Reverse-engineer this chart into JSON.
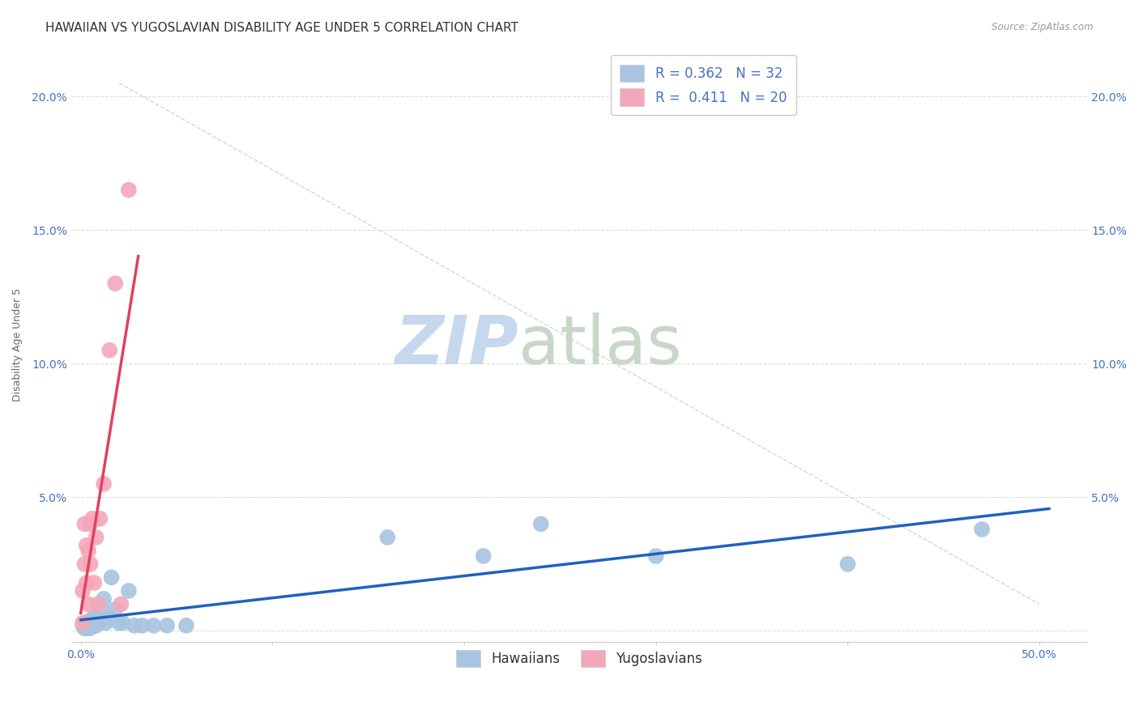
{
  "title": "HAWAIIAN VS YUGOSLAVIAN DISABILITY AGE UNDER 5 CORRELATION CHART",
  "source": "Source: ZipAtlas.com",
  "xlabel_ticks": [
    "0.0%",
    "",
    "",
    "",
    "",
    "50.0%"
  ],
  "xlabel_vals": [
    0.0,
    0.1,
    0.2,
    0.3,
    0.4,
    0.5
  ],
  "ylabel": "Disability Age Under 5",
  "ylabel_ticks": [
    "",
    "5.0%",
    "10.0%",
    "15.0%",
    "20.0%"
  ],
  "ylabel_vals": [
    0.0,
    0.05,
    0.1,
    0.15,
    0.2
  ],
  "xlim": [
    -0.005,
    0.525
  ],
  "ylim": [
    -0.004,
    0.218
  ],
  "hawaiian_R": 0.362,
  "hawaiian_N": 32,
  "yugoslav_R": 0.411,
  "yugoslav_N": 20,
  "hawaiian_color": "#a8c4e0",
  "yugoslav_color": "#f4a7b9",
  "hawaiian_line_color": "#2060c0",
  "yugoslav_line_color": "#e04060",
  "watermark_zip": "ZIP",
  "watermark_atlas": "atlas",
  "watermark_color_zip": "#c5d8ee",
  "watermark_color_atlas": "#c8d8c8",
  "hawaiian_x": [
    0.001,
    0.002,
    0.003,
    0.003,
    0.004,
    0.005,
    0.005,
    0.006,
    0.007,
    0.008,
    0.009,
    0.01,
    0.011,
    0.012,
    0.013,
    0.015,
    0.016,
    0.018,
    0.02,
    0.022,
    0.025,
    0.028,
    0.032,
    0.038,
    0.045,
    0.055,
    0.16,
    0.21,
    0.24,
    0.3,
    0.4,
    0.47
  ],
  "hawaiian_y": [
    0.002,
    0.001,
    0.003,
    0.001,
    0.002,
    0.004,
    0.001,
    0.003,
    0.005,
    0.002,
    0.003,
    0.004,
    0.008,
    0.012,
    0.003,
    0.005,
    0.02,
    0.008,
    0.003,
    0.003,
    0.015,
    0.002,
    0.002,
    0.002,
    0.002,
    0.002,
    0.035,
    0.028,
    0.04,
    0.028,
    0.025,
    0.038
  ],
  "yugoslav_x": [
    0.001,
    0.001,
    0.002,
    0.002,
    0.003,
    0.003,
    0.004,
    0.004,
    0.005,
    0.005,
    0.006,
    0.007,
    0.008,
    0.009,
    0.01,
    0.012,
    0.015,
    0.018,
    0.021,
    0.025
  ],
  "yugoslav_y": [
    0.003,
    0.015,
    0.025,
    0.04,
    0.032,
    0.018,
    0.01,
    0.03,
    0.04,
    0.025,
    0.042,
    0.018,
    0.035,
    0.01,
    0.042,
    0.055,
    0.105,
    0.13,
    0.01,
    0.165
  ],
  "legend_label_hawaiians": "Hawaiians",
  "legend_label_yugoslavians": "Yugoslavians",
  "title_fontsize": 11,
  "axis_label_fontsize": 9,
  "tick_fontsize": 10,
  "legend_fontsize": 12
}
